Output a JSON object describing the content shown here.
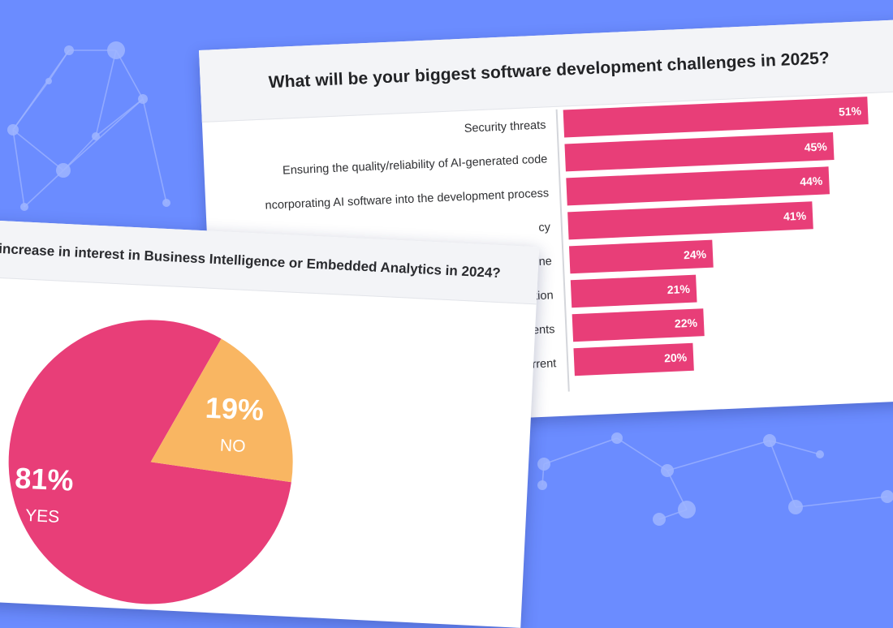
{
  "colors": {
    "background": "#6b8cff",
    "bar": "#e83e78",
    "pie_yes": "#e83e78",
    "pie_no": "#f9b662",
    "network": "#9fb5ff"
  },
  "bar_card": {
    "title": "What will be your biggest software development challenges in 2025?"
  },
  "pie_card": {
    "title": "increase in interest in Business Intelligence or Embedded Analytics in 2024?"
  },
  "chart_data": [
    {
      "type": "bar",
      "orientation": "horizontal",
      "title": "What will be your biggest software development challenges in 2025?",
      "categories": [
        "Security threats",
        "Ensuring the quality/reliability of AI-generated code",
        "ncorporating AI software into the development process",
        "cy",
        "one",
        "ation",
        "ents",
        "rrent"
      ],
      "values": [
        51,
        45,
        44,
        41,
        24,
        21,
        22,
        20
      ],
      "value_labels": [
        "51%",
        "45%",
        "44%",
        "41%",
        "24%",
        "21%",
        "22%",
        "20%"
      ],
      "xlim": [
        0,
        51
      ]
    },
    {
      "type": "pie",
      "title": "increase in interest in Business Intelligence or Embedded Analytics in 2024?",
      "slices": [
        {
          "label": "YES",
          "value": 81,
          "display": "81%"
        },
        {
          "label": "NO",
          "value": 19,
          "display": "19%"
        }
      ]
    }
  ]
}
